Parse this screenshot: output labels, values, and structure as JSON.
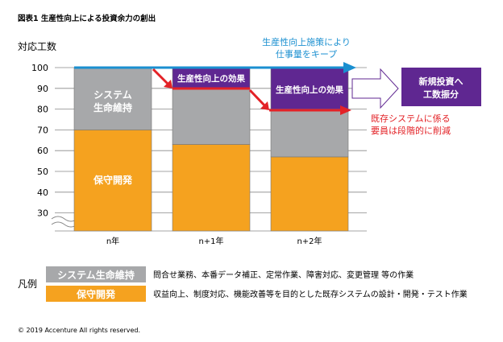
{
  "chart_data": {
    "type": "bar",
    "stacked": true,
    "title": "図表1 生産性向上による投資余力の創出",
    "ylabel": "対応工数",
    "ylim": [
      20,
      100
    ],
    "yticks": [
      30,
      40,
      50,
      60,
      70,
      80,
      90,
      100
    ],
    "axis_break": true,
    "grid": true,
    "categories": [
      "n年",
      "n+1年",
      "n+2年"
    ],
    "series": [
      {
        "name": "保守開発",
        "color": "#f5a21f",
        "values": [
          70,
          63,
          57
        ]
      },
      {
        "name": "システム生命維持",
        "color": "#a7a8aa",
        "values": [
          30,
          27,
          23
        ]
      },
      {
        "name": "生産性向上の効果",
        "color": "#5f2791",
        "values": [
          0,
          10,
          20
        ]
      }
    ],
    "bar_labels": {
      "gray": [
        "システム",
        "生命維持"
      ],
      "orange": "保守開発",
      "purple": "生産性向上の効果"
    },
    "annotations": {
      "blue": [
        "生産性向上施策により",
        "仕事量をキープ"
      ],
      "red": [
        "既存システムに係る",
        "要員は段階的に削減"
      ],
      "box": [
        "新規投資へ",
        "工数振分"
      ],
      "blue_color": "#1a8fd0",
      "red_color": "#e32227"
    },
    "legend": {
      "title": "凡例",
      "items": [
        {
          "label": "システム生命維持",
          "desc": "問合せ業務、本番データ補正、定常作業、障害対応、変更管理 等の作業",
          "color": "#a7a8aa"
        },
        {
          "label": "保守開発",
          "desc": "収益向上、制度対応、機能改善等を目的とした既存システムの設計・開発・テスト作業",
          "color": "#f5a21f"
        }
      ]
    }
  },
  "copyright": "© 2019 Accenture All rights reserved."
}
